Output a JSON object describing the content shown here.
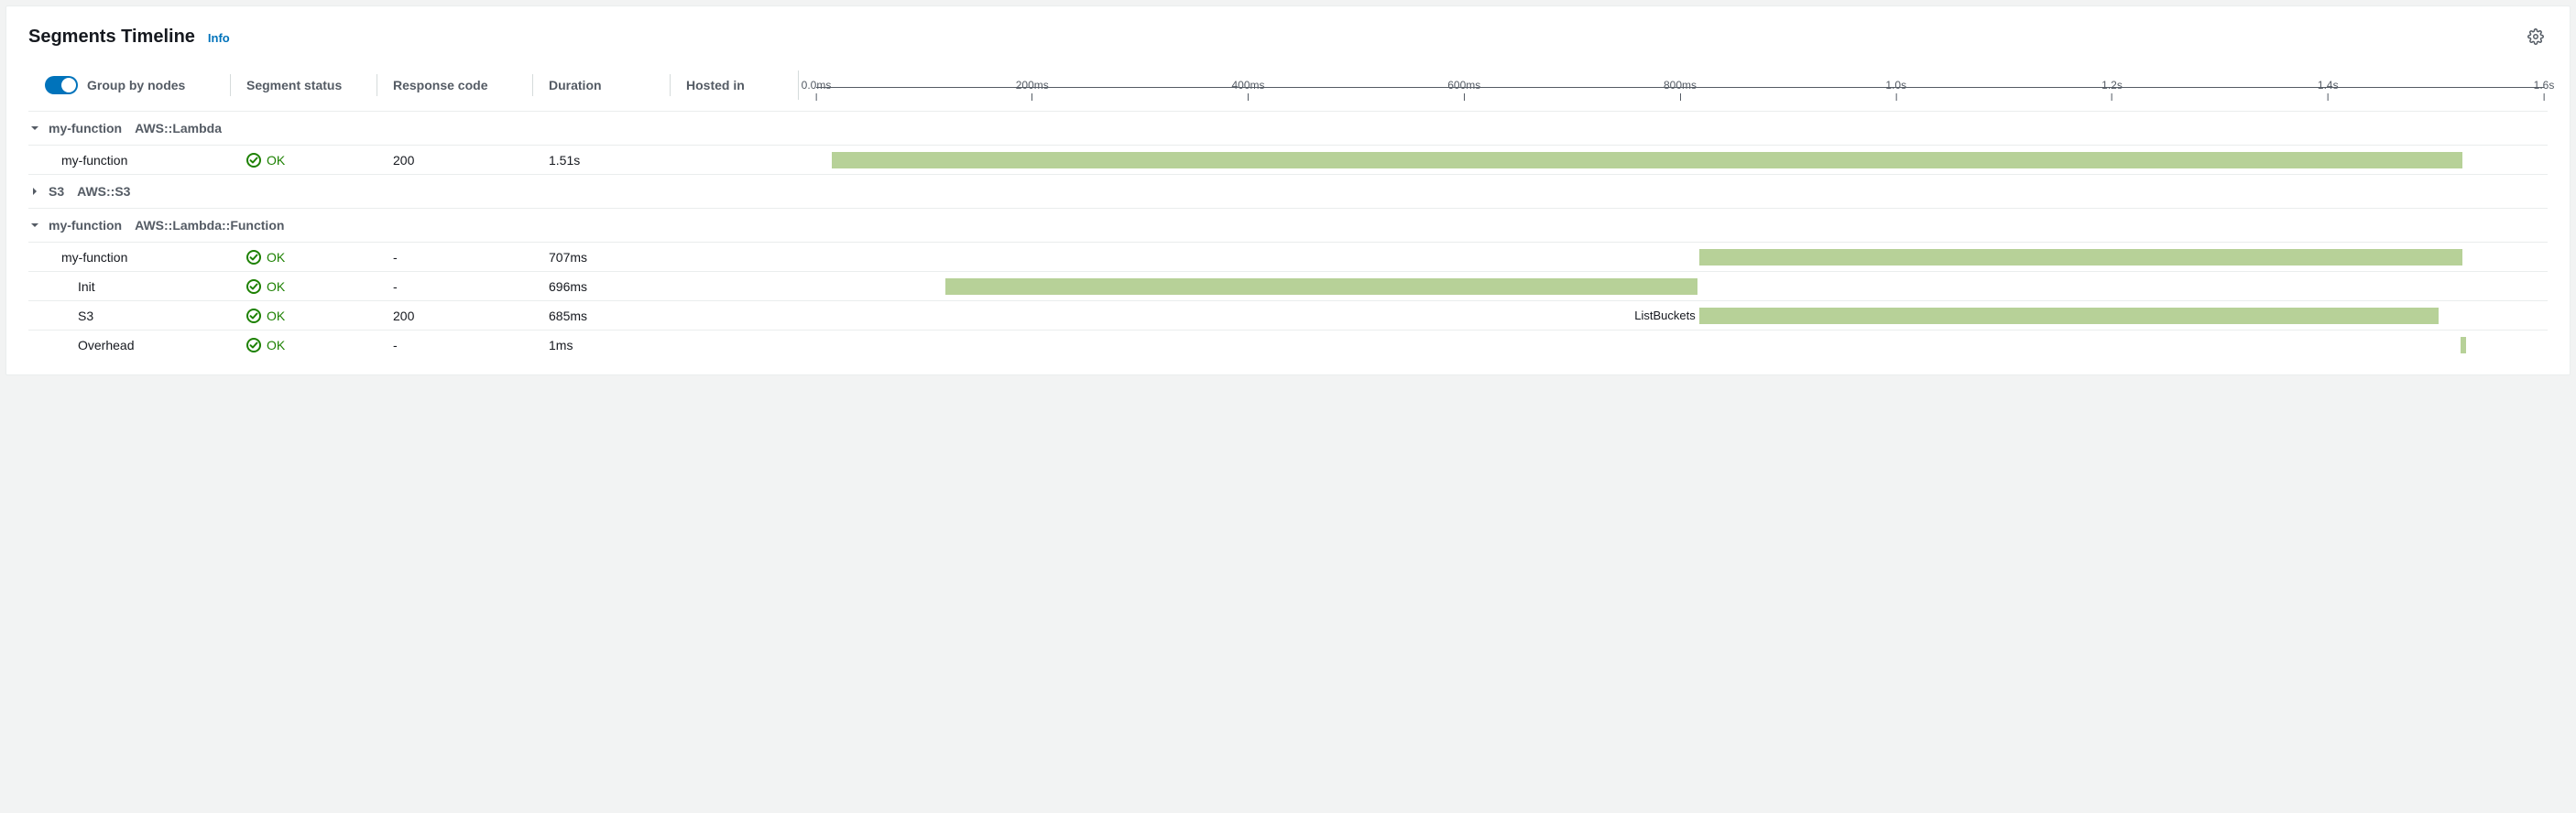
{
  "header": {
    "title": "Segments Timeline",
    "info_label": "Info"
  },
  "columns": {
    "group_by_label": "Group by nodes",
    "status_label": "Segment status",
    "response_label": "Response code",
    "duration_label": "Duration",
    "hosted_label": "Hosted in"
  },
  "toggle": {
    "on": true
  },
  "timeline": {
    "max_ms": 1600,
    "ticks": [
      {
        "pos_pct": 0,
        "label": "0.0ms"
      },
      {
        "pos_pct": 12.5,
        "label": "200ms"
      },
      {
        "pos_pct": 25,
        "label": "400ms"
      },
      {
        "pos_pct": 37.5,
        "label": "600ms"
      },
      {
        "pos_pct": 50,
        "label": "800ms"
      },
      {
        "pos_pct": 62.5,
        "label": "1.0s"
      },
      {
        "pos_pct": 75,
        "label": "1.2s"
      },
      {
        "pos_pct": 87.5,
        "label": "1.4s"
      },
      {
        "pos_pct": 100,
        "label": "1.6s"
      }
    ],
    "bar_color": "#b7d198"
  },
  "groups": [
    {
      "name": "my-function",
      "type": "AWS::Lambda",
      "expanded": true,
      "rows": [
        {
          "indent": 1,
          "name": "my-function",
          "status": "OK",
          "response": "200",
          "duration": "1.51s",
          "bar": {
            "left_pct": 0.9,
            "width_pct": 94.4
          }
        }
      ]
    },
    {
      "name": "S3",
      "type": "AWS::S3",
      "expanded": false,
      "rows": []
    },
    {
      "name": "my-function",
      "type": "AWS::Lambda::Function",
      "expanded": true,
      "rows": [
        {
          "indent": 1,
          "name": "my-function",
          "status": "OK",
          "response": "-",
          "duration": "707ms",
          "bar": {
            "left_pct": 51.1,
            "width_pct": 44.2
          }
        },
        {
          "indent": 2,
          "name": "Init",
          "status": "OK",
          "response": "-",
          "duration": "696ms",
          "bar": {
            "left_pct": 7.5,
            "width_pct": 43.5
          }
        },
        {
          "indent": 2,
          "name": "S3",
          "status": "OK",
          "response": "200",
          "duration": "685ms",
          "bar": {
            "left_pct": 51.1,
            "width_pct": 42.8,
            "label": "ListBuckets"
          }
        },
        {
          "indent": 2,
          "name": "Overhead",
          "status": "OK",
          "response": "-",
          "duration": "1ms",
          "bar": {
            "left_pct": 95.2,
            "width_pct": 0.3
          }
        }
      ]
    }
  ],
  "colors": {
    "ok_green": "#1d8102",
    "link_blue": "#0073bb",
    "text_muted": "#545b64",
    "border": "#eaeded"
  }
}
